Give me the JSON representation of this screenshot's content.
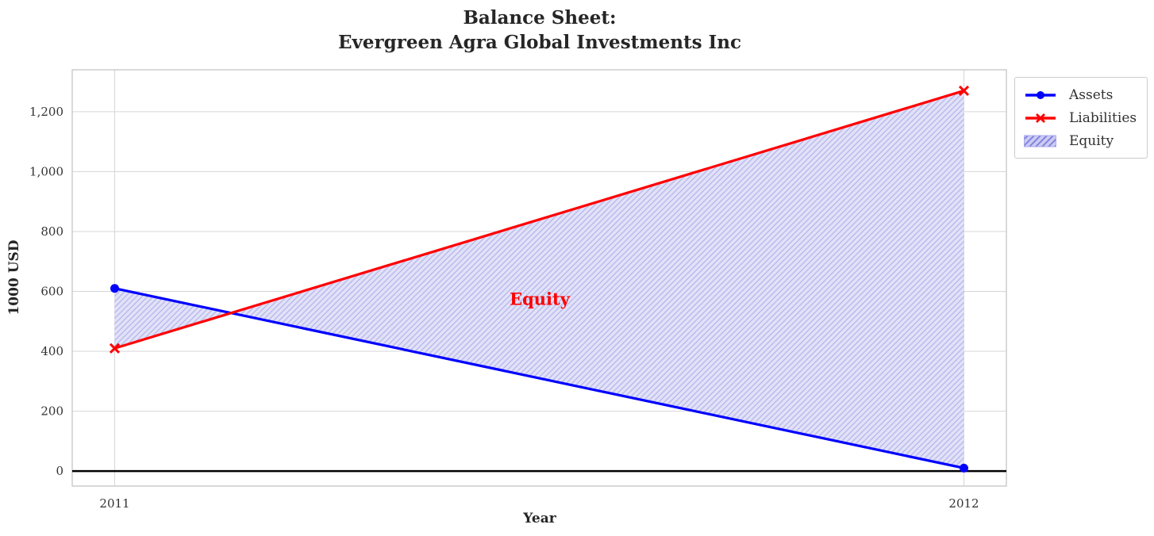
{
  "chart_data": {
    "type": "line",
    "title": "Balance Sheet: Evergreen Agra Global Investments Inc",
    "title_lines": [
      "Balance Sheet:",
      "Evergreen Agra Global Investments Inc"
    ],
    "xlabel": "Year",
    "ylabel": "1000 USD",
    "x": [
      2011,
      2012
    ],
    "series": [
      {
        "name": "Assets",
        "color": "#0000ff",
        "marker": "circle",
        "values": [
          610,
          10
        ]
      },
      {
        "name": "Liabilities",
        "color": "#ff0000",
        "marker": "x",
        "values": [
          410,
          1270
        ]
      }
    ],
    "equity": {
      "label": "Equity",
      "fill_between": [
        "Assets",
        "Liabilities"
      ],
      "hatch": "/",
      "fill_color": "#e1e1f8",
      "hatch_color": "#b6b6ec",
      "legend_fill_color": "#cbcbf2",
      "legend_hatch_color": "#7d7de0",
      "legend_border_color": "#a9a9ea"
    },
    "annotation": {
      "text": "Equity",
      "x": 2011.5,
      "y": 575,
      "color": "#ff0000"
    },
    "xticks": {
      "values": [
        2011,
        2012
      ],
      "labels": [
        "2011",
        "2012"
      ]
    },
    "yticks": {
      "values": [
        0,
        200,
        400,
        600,
        800,
        1000,
        1200
      ],
      "labels": [
        "0",
        "200",
        "400",
        "600",
        "800",
        "1,000",
        "1,200"
      ]
    },
    "xlim": [
      2010.95,
      2012.05
    ],
    "ylim": [
      -50,
      1340
    ],
    "grid": true,
    "legend_position": "upper-right",
    "zero_line": {
      "y": 0,
      "color": "#000000"
    }
  },
  "colors": {
    "background": "#ffffff",
    "grid": "#d6d6da",
    "spine": "#c9c9c9",
    "tick_text": "#333333"
  }
}
